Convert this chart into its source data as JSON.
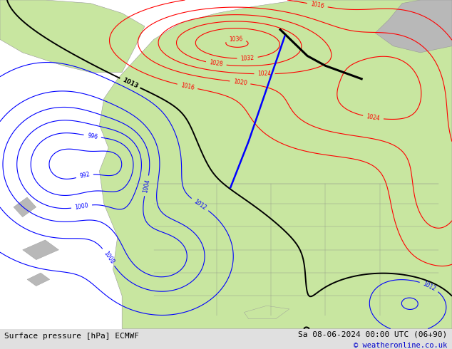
{
  "bottom_left_text": "Surface pressure [hPa] ECMWF",
  "bottom_right_text": "Sa 08-06-2024 00:00 UTC (06+90)",
  "copyright_text": "© weatheronline.co.uk",
  "ocean_color": "#d0d0d0",
  "land_color": "#c8e6a0",
  "gray_land_color": "#b8b8b8",
  "figure_width": 6.34,
  "figure_height": 4.9,
  "dpi": 100,
  "bottom_bar_color": "#e0e0e0",
  "bottom_bar_height": 0.058,
  "text_color": "#000000",
  "copyright_color": "#0000cc"
}
